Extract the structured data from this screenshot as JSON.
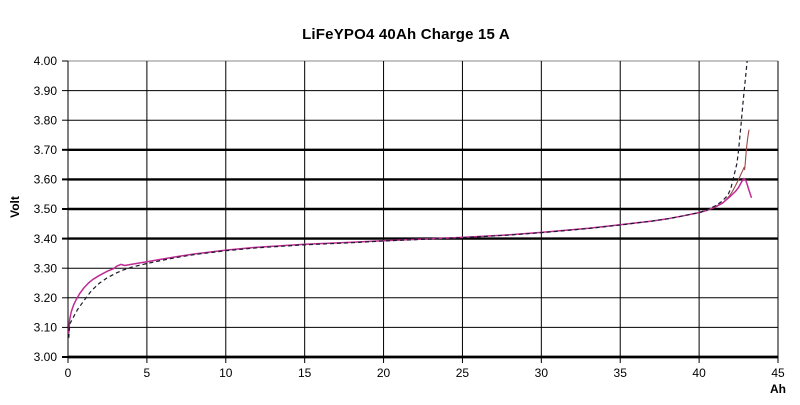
{
  "title": "LiFeYPO4 40Ah Charge 15 A",
  "chart_data": {
    "type": "line",
    "title": "LiFeYPO4 40Ah Charge 15 A",
    "xlabel": "Ah",
    "ylabel": "Volt",
    "xlim": [
      0,
      45
    ],
    "ylim": [
      3.0,
      4.0
    ],
    "x_ticks": [
      0,
      5,
      10,
      15,
      20,
      25,
      30,
      35,
      40,
      45
    ],
    "x_tick_labels": [
      "0",
      "5",
      "10",
      "15",
      "20",
      "25",
      "30",
      "35",
      "40",
      "45"
    ],
    "y_ticks": [
      3.0,
      3.1,
      3.2,
      3.3,
      3.4,
      3.5,
      3.6,
      3.7,
      3.8,
      3.9,
      4.0
    ],
    "y_tick_labels": [
      "3.00",
      "3.10",
      "3.20",
      "3.30",
      "3.40",
      "3.50",
      "3.60",
      "3.70",
      "3.80",
      "3.90",
      "4.00"
    ],
    "grid": "on",
    "legend": "none",
    "thick_y_gridlines": [
      3.0,
      3.4,
      3.5,
      3.6,
      3.7
    ],
    "gridline_color": "#000000",
    "series": [
      {
        "name": "charge-curve-red",
        "color": "#9c4848",
        "dash": "",
        "width": 1.1,
        "points": [
          [
            40,
            3.487
          ],
          [
            40.5,
            3.495
          ],
          [
            41,
            3.505
          ],
          [
            41.5,
            3.52
          ],
          [
            41.9,
            3.543
          ],
          [
            42.1,
            3.558
          ],
          [
            42.3,
            3.578
          ],
          [
            42.5,
            3.6
          ],
          [
            42.65,
            3.617
          ],
          [
            42.78,
            3.632
          ],
          [
            42.85,
            3.641
          ],
          [
            42.88,
            3.633
          ],
          [
            42.92,
            3.652
          ],
          [
            42.98,
            3.69
          ],
          [
            43.02,
            3.715
          ],
          [
            43.08,
            3.74
          ],
          [
            43.14,
            3.762
          ],
          [
            43.17,
            3.768
          ]
        ]
      },
      {
        "name": "charge-curve-magenta",
        "color": "#c02b94",
        "dash": "",
        "width": 1.5,
        "points": [
          [
            0.05,
            3.08
          ],
          [
            0.1,
            3.125
          ],
          [
            0.2,
            3.152
          ],
          [
            0.35,
            3.175
          ],
          [
            0.5,
            3.192
          ],
          [
            0.75,
            3.215
          ],
          [
            1.0,
            3.233
          ],
          [
            1.3,
            3.25
          ],
          [
            1.6,
            3.263
          ],
          [
            2.0,
            3.276
          ],
          [
            2.5,
            3.29
          ],
          [
            2.9,
            3.299
          ],
          [
            3.1,
            3.307
          ],
          [
            3.35,
            3.313
          ],
          [
            3.6,
            3.309
          ],
          [
            4.0,
            3.313
          ],
          [
            5.0,
            3.322
          ],
          [
            6.0,
            3.331
          ],
          [
            7.0,
            3.34
          ],
          [
            8.0,
            3.348
          ],
          [
            10,
            3.361
          ],
          [
            12,
            3.371
          ],
          [
            15,
            3.381
          ],
          [
            18,
            3.388
          ],
          [
            20,
            3.393
          ],
          [
            25,
            3.404
          ],
          [
            28,
            3.413
          ],
          [
            30,
            3.421
          ],
          [
            33,
            3.435
          ],
          [
            35,
            3.447
          ],
          [
            37,
            3.459
          ],
          [
            38,
            3.467
          ],
          [
            39,
            3.477
          ],
          [
            40,
            3.488
          ],
          [
            40.5,
            3.496
          ],
          [
            41,
            3.507
          ],
          [
            41.5,
            3.521
          ],
          [
            42,
            3.544
          ],
          [
            42.3,
            3.559
          ],
          [
            42.5,
            3.573
          ],
          [
            42.7,
            3.592
          ],
          [
            42.82,
            3.603
          ],
          [
            42.95,
            3.597
          ],
          [
            43.05,
            3.583
          ],
          [
            43.15,
            3.565
          ],
          [
            43.25,
            3.549
          ],
          [
            43.32,
            3.538
          ]
        ]
      },
      {
        "name": "charge-curve-black-dashed",
        "color": "#1b1b2a",
        "dash": "4 3",
        "width": 1.2,
        "points": [
          [
            0.05,
            3.065
          ],
          [
            0.1,
            3.11
          ],
          [
            0.3,
            3.13
          ],
          [
            0.6,
            3.16
          ],
          [
            1.0,
            3.19
          ],
          [
            1.5,
            3.225
          ],
          [
            2.0,
            3.25
          ],
          [
            2.5,
            3.268
          ],
          [
            3.0,
            3.282
          ],
          [
            3.5,
            3.294
          ],
          [
            4.0,
            3.303
          ],
          [
            5.0,
            3.316
          ],
          [
            6.0,
            3.327
          ],
          [
            7.0,
            3.337
          ],
          [
            8.0,
            3.346
          ],
          [
            10,
            3.359
          ],
          [
            12,
            3.369
          ],
          [
            15,
            3.379
          ],
          [
            18,
            3.386
          ],
          [
            20,
            3.392
          ],
          [
            25,
            3.403
          ],
          [
            28,
            3.412
          ],
          [
            30,
            3.42
          ],
          [
            33,
            3.434
          ],
          [
            35,
            3.446
          ],
          [
            37,
            3.459
          ],
          [
            38,
            3.467
          ],
          [
            39,
            3.477
          ],
          [
            40,
            3.488
          ],
          [
            40.5,
            3.497
          ],
          [
            41,
            3.51
          ],
          [
            41.4,
            3.524
          ],
          [
            41.8,
            3.545
          ],
          [
            42.0,
            3.568
          ],
          [
            42.2,
            3.61
          ],
          [
            42.4,
            3.655
          ],
          [
            42.5,
            3.7
          ],
          [
            42.65,
            3.78
          ],
          [
            42.8,
            3.87
          ],
          [
            42.95,
            3.95
          ],
          [
            43.1,
            4.03
          ]
        ]
      }
    ]
  }
}
